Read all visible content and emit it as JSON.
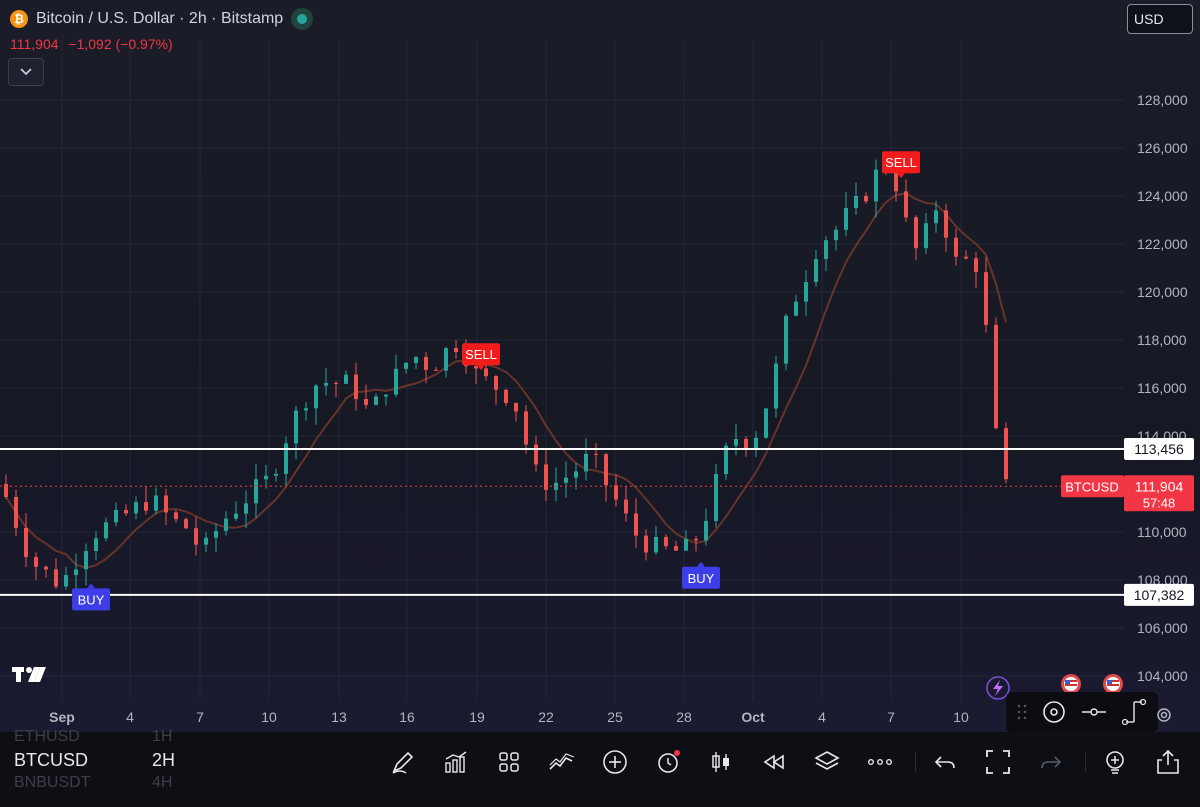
{
  "header": {
    "coin_symbol": "₿",
    "title": "Bitcoin / U.S. Dollar · 2h · Bitstamp",
    "last_price": "111,904",
    "change": "−1,092 (−0.97%)",
    "currency": "USD"
  },
  "chart_data": {
    "type": "candlestick",
    "symbol": "BTCUSD",
    "interval": "2h",
    "y_axis_ticks": [
      "128,000",
      "126,000",
      "124,000",
      "122,000",
      "120,000",
      "118,000",
      "116,000",
      "114,000",
      "110,000",
      "108,000",
      "106,000",
      "104,000"
    ],
    "x_axis_ticks": [
      "Sep",
      "4",
      "7",
      "10",
      "13",
      "16",
      "19",
      "22",
      "25",
      "28",
      "Oct",
      "4",
      "7",
      "10"
    ],
    "ylim": [
      103000,
      130500
    ],
    "close_path": [
      [
        0,
        112000
      ],
      [
        3,
        108800
      ],
      [
        6,
        107800
      ],
      [
        9,
        109900
      ],
      [
        12,
        110600
      ],
      [
        15,
        111400
      ],
      [
        17,
        110500
      ],
      [
        19,
        110100
      ],
      [
        20,
        109000
      ],
      [
        22,
        110400
      ],
      [
        24,
        111200
      ],
      [
        25,
        111600
      ],
      [
        27,
        112300
      ],
      [
        29,
        114500
      ],
      [
        30,
        115200
      ],
      [
        31,
        116000
      ],
      [
        32,
        116300
      ],
      [
        33,
        116200
      ],
      [
        35,
        116200
      ],
      [
        37,
        114800
      ],
      [
        38,
        115900
      ],
      [
        40,
        116700
      ],
      [
        41,
        117400
      ],
      [
        42,
        117200
      ],
      [
        43,
        116800
      ],
      [
        44,
        117300
      ],
      [
        45,
        117800
      ],
      [
        46,
        117900
      ],
      [
        47,
        116800
      ],
      [
        48,
        116400
      ],
      [
        49,
        116200
      ],
      [
        50,
        115900
      ],
      [
        51,
        115600
      ],
      [
        52,
        114800
      ],
      [
        53,
        112600
      ],
      [
        54,
        112300
      ],
      [
        55,
        111900
      ],
      [
        56,
        112200
      ],
      [
        57,
        112400
      ],
      [
        58,
        112800
      ],
      [
        59,
        113200
      ],
      [
        60,
        112400
      ],
      [
        61,
        111600
      ],
      [
        62,
        111000
      ],
      [
        63,
        110100
      ],
      [
        64,
        109700
      ],
      [
        65,
        109400
      ],
      [
        66,
        109300
      ],
      [
        67,
        109200
      ],
      [
        68,
        109200
      ],
      [
        69,
        109400
      ],
      [
        70,
        110100
      ],
      [
        71,
        111300
      ],
      [
        72,
        112800
      ],
      [
        73,
        113800
      ],
      [
        74,
        114100
      ],
      [
        75,
        113600
      ],
      [
        76,
        114700
      ],
      [
        77,
        115900
      ],
      [
        78,
        117700
      ],
      [
        79,
        119600
      ],
      [
        80,
        120100
      ],
      [
        81,
        121400
      ],
      [
        82,
        122200
      ],
      [
        83,
        122400
      ],
      [
        84,
        122800
      ],
      [
        85,
        123500
      ],
      [
        86,
        123700
      ],
      [
        87,
        124600
      ],
      [
        88,
        125200
      ],
      [
        89,
        125400
      ],
      [
        90,
        123600
      ],
      [
        91,
        122100
      ],
      [
        92,
        121400
      ],
      [
        93,
        123500
      ],
      [
        94,
        123600
      ],
      [
        95,
        121600
      ],
      [
        96,
        120900
      ],
      [
        97,
        121700
      ],
      [
        98,
        120600
      ],
      [
        99,
        116200
      ],
      [
        100,
        111800
      ],
      [
        101,
        111900
      ]
    ],
    "horizontal_levels": [
      {
        "label": "113,456",
        "value": 113456
      },
      {
        "label": "107,382",
        "value": 107382
      }
    ],
    "current_price": {
      "value": 111904,
      "label": "111,904",
      "countdown": "57:48",
      "symbol_label": "BTCUSD"
    },
    "signals": [
      {
        "type": "BUY",
        "label": "BUY",
        "x": 8.5,
        "price": 107900
      },
      {
        "type": "SELL",
        "label": "SELL",
        "x": 47.5,
        "price": 116700
      },
      {
        "type": "BUY",
        "label": "BUY",
        "x": 69.5,
        "price": 108800
      },
      {
        "type": "SELL",
        "label": "SELL",
        "x": 89.5,
        "price": 124700
      }
    ],
    "colors": {
      "up": "#26a69a",
      "down": "#ef5350",
      "buy": "#3d3ee8",
      "sell": "#f21c1c",
      "level": "#ffffff"
    }
  },
  "bottom": {
    "symbols": [
      {
        "name": "ETHUSD",
        "tf": "1H",
        "state": "ghost"
      },
      {
        "name": "BTCUSD",
        "tf": "2H",
        "state": "active"
      },
      {
        "name": "BNBUSDT",
        "tf": "4H",
        "state": "ghost"
      }
    ],
    "toolbar_icons": [
      "pen-icon",
      "indicators-icon",
      "grid-icon",
      "strategy-icon",
      "plus-icon",
      "alarm-icon",
      "candles-icon",
      "replay-icon",
      "layers-icon",
      "more-icon",
      "undo-icon",
      "fullscreen-icon",
      "redo-icon",
      "idea-icon",
      "share-icon"
    ]
  }
}
